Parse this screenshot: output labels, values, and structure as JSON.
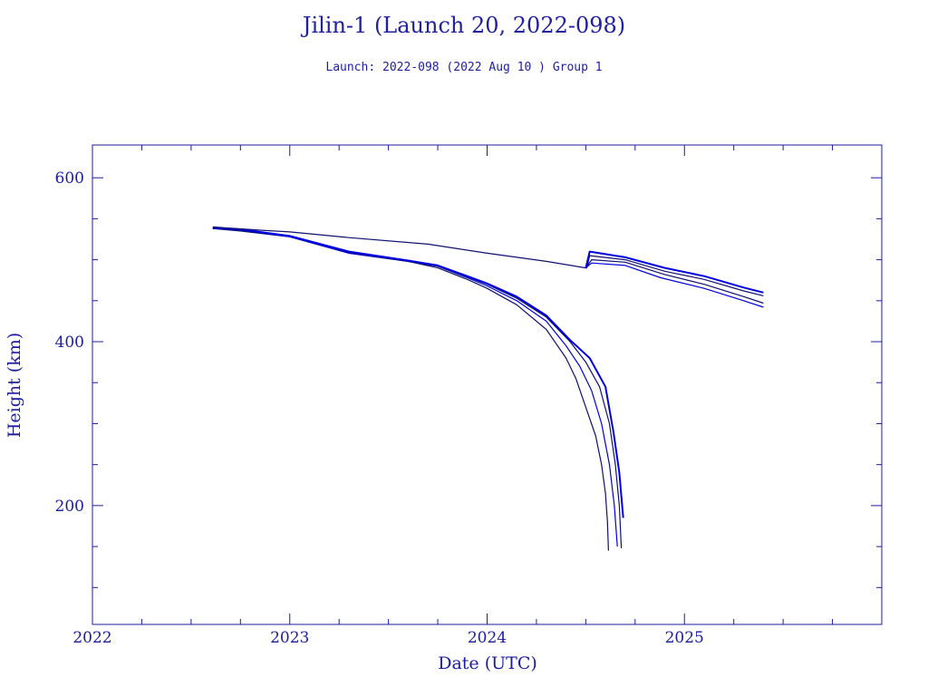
{
  "chart_data": {
    "type": "line",
    "title": "Jilin-1 (Launch 20, 2022-098)",
    "subtitle": "Launch: 2022-098  (2022 Aug 10 )  Group 1",
    "xlabel": "Date (UTC)",
    "ylabel": "Height (km)",
    "xlim": [
      2022.0,
      2026.0
    ],
    "ylim": [
      55,
      640
    ],
    "x_ticks": [
      2022,
      2023,
      2024,
      2025
    ],
    "x_tick_labels": [
      "2022",
      "2023",
      "2024",
      "2025"
    ],
    "y_ticks": [
      200,
      400,
      600
    ],
    "y_tick_labels": [
      "200",
      "400",
      "600"
    ],
    "grid": false,
    "colors": {
      "axis": "#1c1c9c",
      "series": "#0000e0",
      "series_dark": "#10106e"
    },
    "series": [
      {
        "x": [
          2022.61,
          2022.75,
          2023.0,
          2023.3,
          2023.6,
          2023.75,
          2023.9,
          2024.0,
          2024.15,
          2024.3,
          2024.4,
          2024.45,
          2024.5,
          2024.55,
          2024.58,
          2024.6,
          2024.61,
          2024.615
        ],
        "y": [
          538,
          535,
          528,
          508,
          498,
          490,
          476,
          465,
          445,
          415,
          380,
          355,
          320,
          285,
          250,
          215,
          180,
          145
        ]
      },
      {
        "x": [
          2022.61,
          2022.75,
          2023.0,
          2023.3,
          2023.6,
          2023.75,
          2023.9,
          2024.0,
          2024.15,
          2024.3,
          2024.4,
          2024.47,
          2024.53,
          2024.58,
          2024.62,
          2024.645,
          2024.66
        ],
        "y": [
          538,
          536,
          528,
          508,
          498,
          492,
          478,
          468,
          450,
          425,
          395,
          370,
          340,
          300,
          250,
          200,
          150
        ]
      },
      {
        "x": [
          2022.61,
          2022.75,
          2023.0,
          2023.3,
          2023.6,
          2023.75,
          2023.9,
          2024.0,
          2024.15,
          2024.3,
          2024.42,
          2024.5,
          2024.57,
          2024.62,
          2024.65,
          2024.67,
          2024.68
        ],
        "y": [
          538,
          536,
          529,
          509,
          498,
          492,
          479,
          470,
          453,
          430,
          400,
          375,
          345,
          300,
          250,
          200,
          148
        ]
      },
      {
        "x": [
          2022.61,
          2022.75,
          2023.0,
          2023.3,
          2023.6,
          2023.75,
          2023.9,
          2024.0,
          2024.15,
          2024.3,
          2024.42,
          2024.52,
          2024.6,
          2024.64,
          2024.67,
          2024.69
        ],
        "y": [
          539,
          537,
          529,
          510,
          499,
          493,
          480,
          471,
          455,
          432,
          402,
          380,
          345,
          290,
          240,
          185
        ]
      },
      {
        "x": [
          2022.61,
          2022.85,
          2023.0,
          2023.3,
          2023.7,
          2024.0,
          2024.3,
          2024.5,
          2024.505,
          2024.52,
          2024.7,
          2024.9,
          2025.1,
          2025.3,
          2025.4
        ],
        "y": [
          540,
          536,
          534,
          527,
          519,
          508,
          498,
          490,
          490,
          505,
          500,
          486,
          476,
          462,
          456
        ]
      },
      {
        "x": [
          2024.5,
          2024.52,
          2024.7,
          2024.9,
          2025.1,
          2025.3,
          2025.4
        ],
        "y": [
          490,
          510,
          503,
          490,
          480,
          466,
          460
        ]
      },
      {
        "x": [
          2024.5,
          2024.53,
          2024.7,
          2024.9,
          2025.1,
          2025.3,
          2025.4
        ],
        "y": [
          490,
          500,
          497,
          482,
          470,
          455,
          447
        ]
      },
      {
        "x": [
          2024.5,
          2024.53,
          2024.7,
          2024.88,
          2025.1,
          2025.3,
          2025.4
        ],
        "y": [
          490,
          496,
          493,
          478,
          465,
          450,
          442
        ]
      }
    ]
  }
}
